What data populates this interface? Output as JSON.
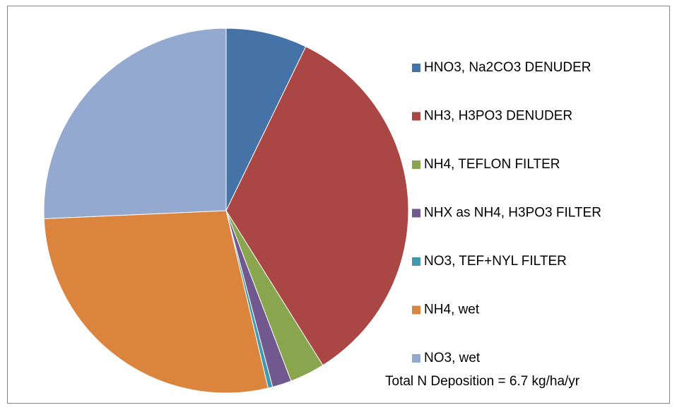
{
  "chart_data": {
    "type": "pie",
    "categories": [
      "HNO3, Na2CO3 DENUDER",
      "NH3, H3PO3 DENUDER",
      "NH4, TEFLON FILTER",
      "NHX as NH4, H3PO3 FILTER",
      "NO3, TEF+NYL FILTER",
      "NH4, wet",
      "NO3, wet"
    ],
    "values": [
      7.2,
      33.9,
      3.1,
      1.7,
      0.4,
      28.0,
      25.7
    ],
    "colors": [
      "#4572a7",
      "#aa4643",
      "#89a54e",
      "#71588f",
      "#4198af",
      "#db843d",
      "#93a9cf"
    ],
    "annotation": "Total N Deposition = 6.7 kg/ha/yr",
    "legend": "right"
  }
}
